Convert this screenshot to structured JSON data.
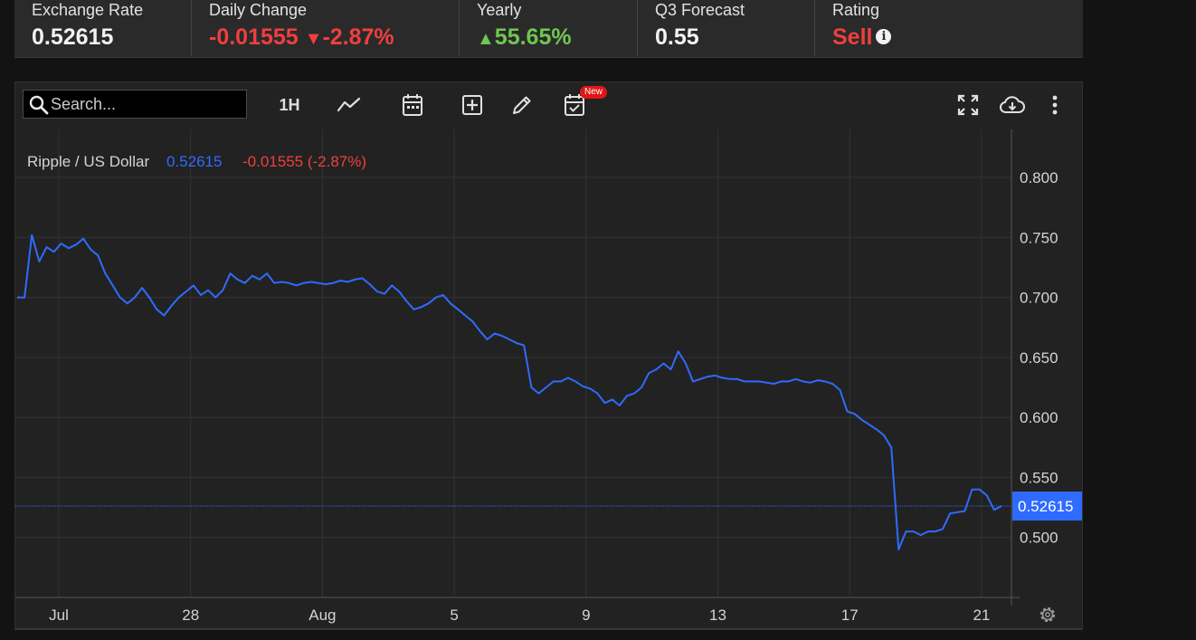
{
  "summary": {
    "exchange_rate": {
      "label": "Exchange Rate",
      "value": "0.52615"
    },
    "daily_change": {
      "label": "Daily Change",
      "value": "-0.01555",
      "arrow": "▼",
      "percent": "-2.87%"
    },
    "yearly": {
      "label": "Yearly",
      "arrow": "▲",
      "value": "55.65%"
    },
    "q3_forecast": {
      "label": "Q3 Forecast",
      "value": "0.55"
    },
    "rating": {
      "label": "Rating",
      "value": "Sell",
      "info": "i"
    }
  },
  "toolbar": {
    "search_placeholder": "Search...",
    "interval": "1H",
    "new_badge": "New",
    "icons": [
      "search-icon",
      "line-chart-icon",
      "calendar-icon",
      "plus-box-icon",
      "pencil-icon",
      "calendar-check-icon",
      "fullscreen-icon",
      "cloud-download-icon",
      "more-vertical-icon",
      "gear-icon"
    ]
  },
  "legend": {
    "symbol": "Ripple / US Dollar",
    "price": "0.52615",
    "change": "-0.01555 (-2.87%)"
  },
  "colors": {
    "line": "#2f6bff",
    "negative": "#ef3f3f",
    "positive": "#6fc650",
    "background": "#222222"
  },
  "chart_data": {
    "type": "line",
    "title": "Ripple / US Dollar",
    "x_tick_labels": [
      "Jul",
      "28",
      "Aug",
      "5",
      "9",
      "13",
      "17",
      "21"
    ],
    "y_tick_labels": [
      "0.800",
      "0.750",
      "0.700",
      "0.650",
      "0.600",
      "0.550",
      "0.500"
    ],
    "ylim": [
      0.45,
      0.84
    ],
    "last_price": 0.52615,
    "last_price_label": "0.52615",
    "grid": true,
    "series": [
      {
        "values": [
          0.7,
          0.7,
          0.752,
          0.73,
          0.742,
          0.738,
          0.745,
          0.741,
          0.744,
          0.749,
          0.74,
          0.735,
          0.72,
          0.71,
          0.7,
          0.695,
          0.7,
          0.708,
          0.7,
          0.69,
          0.685,
          0.693,
          0.7,
          0.705,
          0.71,
          0.702,
          0.706,
          0.7,
          0.706,
          0.72,
          0.715,
          0.712,
          0.718,
          0.715,
          0.72,
          0.712,
          0.713,
          0.712,
          0.71,
          0.712,
          0.713,
          0.712,
          0.711,
          0.712,
          0.714,
          0.713,
          0.715,
          0.716,
          0.711,
          0.705,
          0.703,
          0.71,
          0.705,
          0.697,
          0.69,
          0.692,
          0.695,
          0.7,
          0.702,
          0.695,
          0.69,
          0.685,
          0.68,
          0.672,
          0.665,
          0.67,
          0.668,
          0.665,
          0.662,
          0.66,
          0.625,
          0.62,
          0.625,
          0.63,
          0.63,
          0.633,
          0.63,
          0.626,
          0.624,
          0.62,
          0.612,
          0.615,
          0.61,
          0.618,
          0.62,
          0.625,
          0.637,
          0.64,
          0.645,
          0.64,
          0.655,
          0.645,
          0.63,
          0.632,
          0.634,
          0.635,
          0.633,
          0.632,
          0.632,
          0.63,
          0.63,
          0.63,
          0.629,
          0.628,
          0.63,
          0.63,
          0.632,
          0.63,
          0.629,
          0.631,
          0.63,
          0.628,
          0.623,
          0.605,
          0.603,
          0.598,
          0.594,
          0.59,
          0.585,
          0.575,
          0.49,
          0.505,
          0.505,
          0.502,
          0.505,
          0.505,
          0.507,
          0.52,
          0.521,
          0.522,
          0.54,
          0.54,
          0.535,
          0.523,
          0.52615
        ]
      }
    ]
  }
}
